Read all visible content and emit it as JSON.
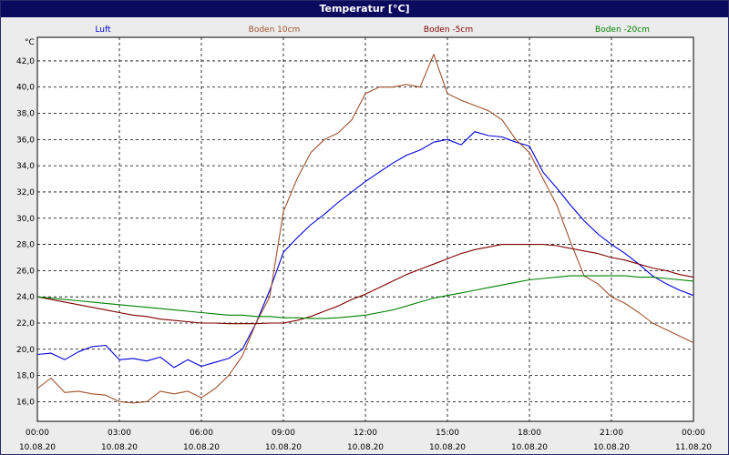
{
  "window": {
    "title": "Temperatur [°C]"
  },
  "chart_data": {
    "type": "line",
    "title": "Temperatur [°C]",
    "ylabel": "°C",
    "xlabel": "",
    "ylim": [
      14.5,
      43.8
    ],
    "xlim_hours": [
      0,
      24
    ],
    "grid": true,
    "legend_position": "top",
    "y_ticks": [
      "16,0",
      "18,0",
      "20,0",
      "22,0",
      "24,0",
      "26,0",
      "28,0",
      "30,0",
      "32,0",
      "34,0",
      "36,0",
      "38,0",
      "40,0",
      "42,0"
    ],
    "x_ticks": [
      {
        "time": "00:00",
        "date": "10.08.20"
      },
      {
        "time": "03:00",
        "date": "10.08.20"
      },
      {
        "time": "06:00",
        "date": "10.08.20"
      },
      {
        "time": "09:00",
        "date": "10.08.20"
      },
      {
        "time": "12:00",
        "date": "10.08.20"
      },
      {
        "time": "15:00",
        "date": "10.08.20"
      },
      {
        "time": "18:00",
        "date": "10.08.20"
      },
      {
        "time": "21:00",
        "date": "10.08.20"
      },
      {
        "time": "00:00",
        "date": "11.08.20"
      }
    ],
    "x_hours": [
      0,
      0.5,
      1,
      1.5,
      2,
      2.5,
      3,
      3.5,
      4,
      4.5,
      5,
      5.5,
      6,
      6.5,
      7,
      7.5,
      8,
      8.5,
      9,
      9.5,
      10,
      10.5,
      11,
      11.5,
      12,
      12.5,
      13,
      13.5,
      14,
      14.5,
      15,
      15.5,
      16,
      16.5,
      17,
      17.5,
      18,
      18.5,
      19,
      19.5,
      20,
      20.5,
      21,
      21.5,
      22,
      22.5,
      23,
      23.5,
      24
    ],
    "series": [
      {
        "name": "Luft",
        "color": "#0000dd",
        "values": [
          19.6,
          19.7,
          19.2,
          19.8,
          20.2,
          20.3,
          19.2,
          19.3,
          19.1,
          19.4,
          18.6,
          19.2,
          18.7,
          19.0,
          19.3,
          20.0,
          22.0,
          24.5,
          27.4,
          28.5,
          29.5,
          30.3,
          31.2,
          32.0,
          32.8,
          33.5,
          34.2,
          34.8,
          35.2,
          35.8,
          36.0,
          35.6,
          36.6,
          36.3,
          36.2,
          35.8,
          35.5,
          33.5,
          32.3,
          31.0,
          29.8,
          28.8,
          28.0,
          27.3,
          26.5,
          25.6,
          25.0,
          24.5,
          24.1
        ]
      },
      {
        "name": "Boden 10cm",
        "color": "#a0522d",
        "values": [
          17.0,
          17.8,
          16.7,
          16.8,
          16.6,
          16.5,
          16.0,
          15.9,
          16.0,
          16.8,
          16.6,
          16.8,
          16.3,
          17.0,
          18.0,
          19.5,
          22.0,
          24.0,
          30.5,
          33.0,
          35.0,
          36.0,
          36.5,
          37.5,
          39.5,
          40.0,
          40.0,
          40.2,
          40.0,
          42.5,
          39.5,
          39.0,
          38.6,
          38.2,
          37.5,
          36.0,
          35.0,
          33.0,
          31.0,
          28.2,
          25.6,
          25.0,
          24.0,
          23.5,
          22.8,
          22.0,
          21.5,
          21.0,
          20.5
        ]
      },
      {
        "name": "Boden -5cm",
        "color": "#800000",
        "values": [
          24.0,
          23.8,
          23.6,
          23.4,
          23.2,
          23.0,
          22.8,
          22.6,
          22.5,
          22.3,
          22.2,
          22.1,
          22.0,
          22.0,
          21.95,
          21.95,
          21.95,
          22.0,
          22.0,
          22.2,
          22.5,
          22.9,
          23.3,
          23.8,
          24.2,
          24.7,
          25.2,
          25.7,
          26.1,
          26.5,
          26.9,
          27.3,
          27.6,
          27.8,
          28.0,
          28.0,
          28.0,
          28.0,
          27.9,
          27.7,
          27.5,
          27.3,
          27.0,
          26.8,
          26.5,
          26.2,
          26.0,
          25.7,
          25.5
        ]
      },
      {
        "name": "Boden -20cm",
        "color": "#008000",
        "values": [
          24.0,
          23.9,
          23.8,
          23.7,
          23.6,
          23.5,
          23.4,
          23.3,
          23.2,
          23.1,
          23.0,
          22.9,
          22.8,
          22.7,
          22.6,
          22.6,
          22.5,
          22.5,
          22.4,
          22.4,
          22.35,
          22.35,
          22.4,
          22.5,
          22.6,
          22.8,
          23.0,
          23.3,
          23.6,
          23.9,
          24.1,
          24.3,
          24.5,
          24.7,
          24.9,
          25.1,
          25.3,
          25.4,
          25.5,
          25.6,
          25.6,
          25.6,
          25.6,
          25.6,
          25.5,
          25.5,
          25.4,
          25.3,
          25.2
        ]
      }
    ]
  }
}
